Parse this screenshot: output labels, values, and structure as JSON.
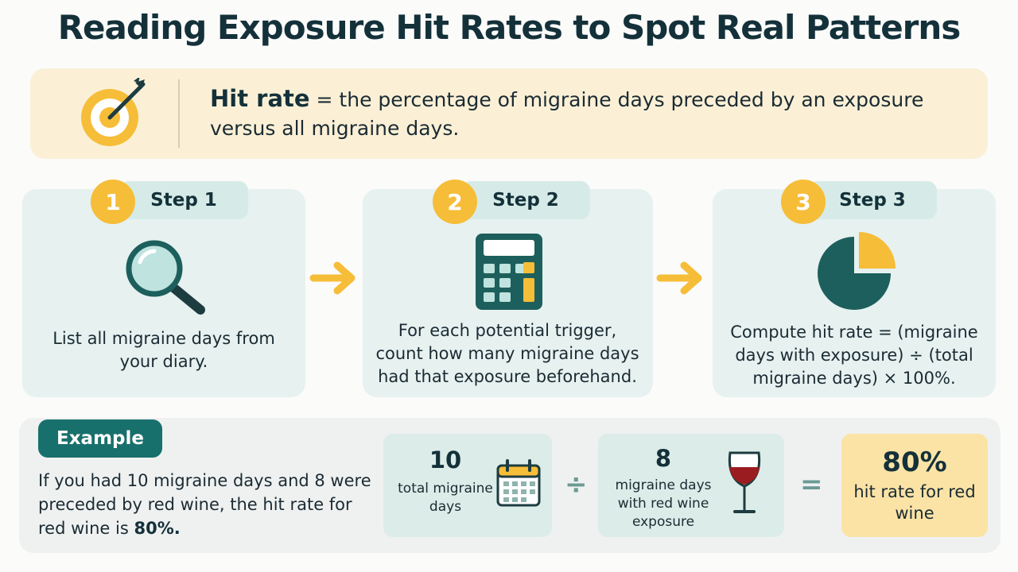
{
  "title": "Reading Exposure Hit Rates to Spot Real Patterns",
  "definition": {
    "term": "Hit rate",
    "text": " = the percentage of migraine days preceded by an exposure versus all migraine days."
  },
  "steps": [
    {
      "number": "1",
      "label": "Step 1",
      "icon": "magnifying-glass-icon",
      "text": "List all migraine days from your diary."
    },
    {
      "number": "2",
      "label": "Step 2",
      "icon": "calculator-icon",
      "text": "For each potential trigger, count how many migraine days had that exposure beforehand."
    },
    {
      "number": "3",
      "label": "Step 3",
      "icon": "pie-chart-icon",
      "text": "Compute hit rate = (migraine days with exposure) ÷ (total migraine days) × 100%."
    }
  ],
  "example": {
    "tag": "Example",
    "text_before": "If you had 10 migraine days and 8 were preceded by red wine, the hit rate for red wine is ",
    "text_bold": "80%.",
    "total": {
      "value": "10",
      "label": "total migraine days",
      "icon": "calendar-icon"
    },
    "divide_symbol": "÷",
    "exposed": {
      "value": "8",
      "label": "migraine days with red wine exposure",
      "icon": "wine-glass-icon"
    },
    "equals_symbol": "=",
    "result": {
      "value": "80%",
      "label": "hit rate for red wine"
    }
  },
  "colors": {
    "accent_yellow": "#f6bd38",
    "teal_dark": "#1d5f5c",
    "wine_red": "#9b1c20"
  }
}
